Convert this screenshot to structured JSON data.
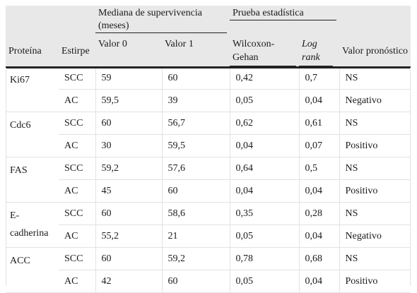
{
  "header": {
    "group_survival": "Mediana de supervivencia (meses)",
    "group_test": "Prueba estadística",
    "col_protein": "Proteína",
    "col_lineage": "Estirpe",
    "col_value0": "Valor 0",
    "col_value1": "Valor 1",
    "col_wilcoxon": "Wilcoxon-Gehan",
    "col_logrank": "Log rank",
    "col_prognostic": "Valor pronóstico"
  },
  "rows": [
    {
      "protein": "Ki67",
      "lineage": "SCC",
      "v0": "59",
      "v1": "60",
      "wilcoxon": "0,42",
      "logrank": "0,7",
      "prognostic": "NS"
    },
    {
      "protein": "",
      "lineage": "AC",
      "v0": "59,5",
      "v1": "39",
      "wilcoxon": "0,05",
      "logrank": "0,04",
      "prognostic": "Negativo"
    },
    {
      "protein": "Cdc6",
      "lineage": "SCC",
      "v0": "60",
      "v1": "56,7",
      "wilcoxon": "0,62",
      "logrank": "0,61",
      "prognostic": "NS"
    },
    {
      "protein": "",
      "lineage": "AC",
      "v0": "30",
      "v1": "59,5",
      "wilcoxon": "0,04",
      "logrank": "0,07",
      "prognostic": "Positivo"
    },
    {
      "protein": "FAS",
      "lineage": "SCC",
      "v0": "59,2",
      "v1": "57,6",
      "wilcoxon": "0,64",
      "logrank": "0,5",
      "prognostic": "NS"
    },
    {
      "protein": "",
      "lineage": "AC",
      "v0": "45",
      "v1": "60",
      "wilcoxon": "0,04",
      "logrank": "0,04",
      "prognostic": "Positivo"
    },
    {
      "protein": "E-cadherina",
      "lineage": "SCC",
      "v0": "60",
      "v1": "58,6",
      "wilcoxon": "0,35",
      "logrank": "0,28",
      "prognostic": "NS"
    },
    {
      "protein": "",
      "lineage": "AC",
      "v0": "55,2",
      "v1": "21",
      "wilcoxon": "0,05",
      "logrank": "0,04",
      "prognostic": "Negativo"
    },
    {
      "protein": "ACC",
      "lineage": "SCC",
      "v0": "60",
      "v1": "59,2",
      "wilcoxon": "0,78",
      "logrank": "0,68",
      "prognostic": "NS"
    },
    {
      "protein": "",
      "lineage": "AC",
      "v0": "42",
      "v1": "60",
      "wilcoxon": "0,05",
      "logrank": "0,04",
      "prognostic": "Positivo"
    }
  ]
}
